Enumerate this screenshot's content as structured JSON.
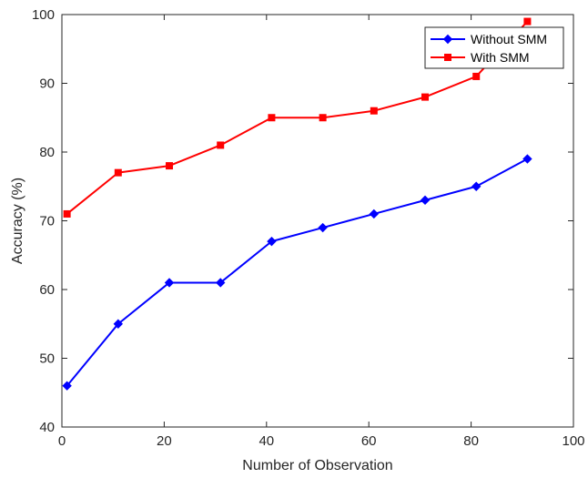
{
  "chart_data": {
    "type": "line",
    "xlabel": "Number of Observation",
    "ylabel": "Accuracy (%)",
    "xlim": [
      0,
      100
    ],
    "ylim": [
      40,
      100
    ],
    "xticks": [
      0,
      20,
      40,
      60,
      80,
      100
    ],
    "yticks": [
      40,
      50,
      60,
      70,
      80,
      90,
      100
    ],
    "grid": false,
    "legend_position": "top-right",
    "series": [
      {
        "name": "Without SMM",
        "color": "#0000ff",
        "marker": "diamond",
        "x": [
          1,
          11,
          21,
          31,
          41,
          51,
          61,
          71,
          81,
          91
        ],
        "y": [
          46,
          55,
          61,
          61,
          67,
          69,
          71,
          73,
          75,
          79
        ]
      },
      {
        "name": "With SMM",
        "color": "#ff0000",
        "marker": "square",
        "x": [
          1,
          11,
          21,
          31,
          41,
          51,
          61,
          71,
          81,
          91
        ],
        "y": [
          71,
          77,
          78,
          81,
          85,
          85,
          86,
          88,
          91,
          99
        ]
      }
    ]
  }
}
